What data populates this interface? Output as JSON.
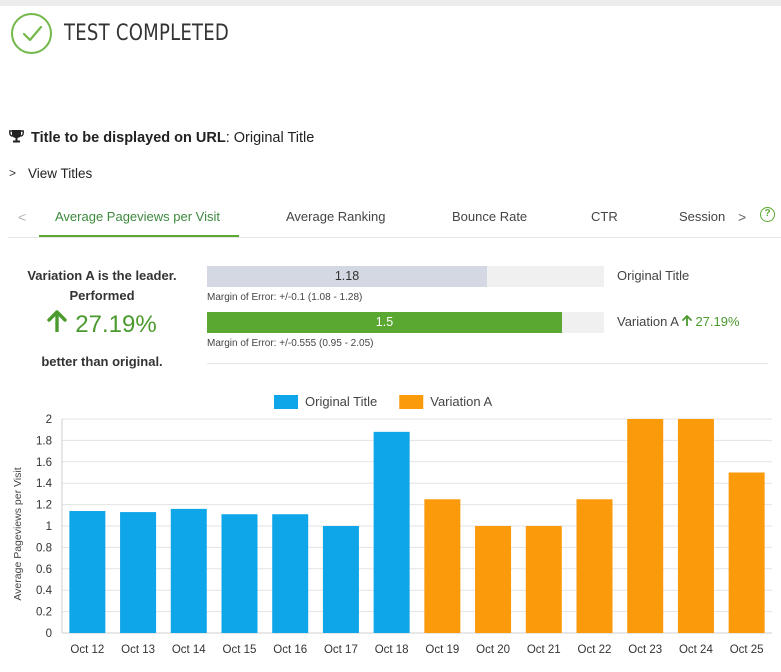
{
  "header": {
    "title": "TEST COMPLETED",
    "status_color": "#73b84a"
  },
  "title_line": {
    "label": "Title to be displayed on URL",
    "value": "Original Title",
    "separator": ":"
  },
  "view_titles": {
    "label": "View Titles"
  },
  "tabs": [
    {
      "label": "Average Pageviews per Visit",
      "active": true
    },
    {
      "label": "Average Ranking",
      "active": false
    },
    {
      "label": "Bounce Rate",
      "active": false
    },
    {
      "label": "CTR",
      "active": false
    },
    {
      "label": "Session",
      "active": false
    }
  ],
  "help_icon": "?",
  "leader": {
    "line1": "Variation A is the leader.",
    "line2": "Performed",
    "pct": "27.19%",
    "line3": "better than original."
  },
  "comparison": [
    {
      "name": "Original Title",
      "value": 1.18,
      "value_label": "1.18",
      "fill_fraction": 0.705,
      "moe": "Margin of Error: +/-0.1 (1.08 - 1.28)",
      "color": "#d4d8e2",
      "text_color": "#333333",
      "pct": ""
    },
    {
      "name": "Variation A",
      "value": 1.5,
      "value_label": "1.5",
      "fill_fraction": 0.895,
      "moe": "Margin of Error: +/-0.555 (0.95 - 2.05)",
      "color": "#5aa832",
      "text_color": "#ffffff",
      "pct": "27.19%"
    }
  ],
  "chart_data": {
    "type": "bar",
    "title": "",
    "xlabel": "",
    "ylabel": "Average Pageviews per Visit",
    "ylim": [
      0,
      2
    ],
    "yticks": [
      "0",
      "0.2",
      "0.4",
      "0.6",
      "0.8",
      "1",
      "1.2",
      "1.4",
      "1.6",
      "1.8",
      "2"
    ],
    "grid": true,
    "legend": "top-center",
    "categories": [
      "Oct 12",
      "Oct 13",
      "Oct 14",
      "Oct 15",
      "Oct 16",
      "Oct 17",
      "Oct 18",
      "Oct 19",
      "Oct 20",
      "Oct 21",
      "Oct 22",
      "Oct 23",
      "Oct 24",
      "Oct 25"
    ],
    "series": [
      {
        "name": "Original Title",
        "color": "#0ea5e9",
        "values": [
          1.14,
          1.13,
          1.16,
          1.11,
          1.11,
          1.0,
          1.88,
          null,
          null,
          null,
          null,
          null,
          null,
          null
        ]
      },
      {
        "name": "Variation A",
        "color": "#fb9a0a",
        "values": [
          null,
          null,
          null,
          null,
          null,
          null,
          null,
          1.25,
          1.0,
          1.0,
          1.25,
          2.0,
          2.0,
          1.5
        ]
      }
    ]
  }
}
